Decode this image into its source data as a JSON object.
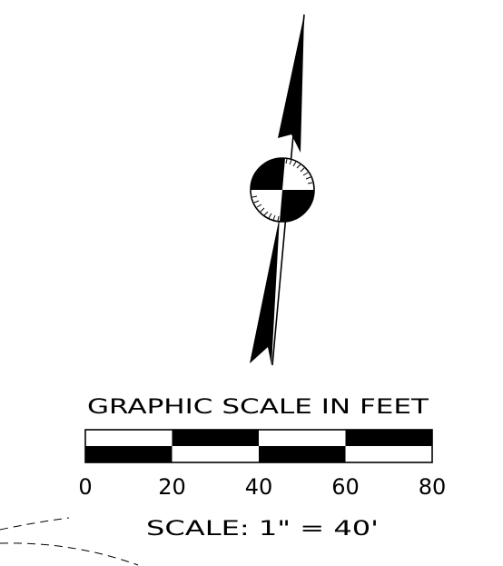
{
  "drawing": {
    "title": "GRAPHIC SCALE IN FEET",
    "scale_note": "SCALE: 1\" = 40'",
    "tick_labels": [
      "0",
      "20",
      "40",
      "60",
      "80"
    ],
    "scale_bar": {
      "units": "feet",
      "segments": [
        {
          "from": 0,
          "to": 20
        },
        {
          "from": 20,
          "to": 40
        },
        {
          "from": 40,
          "to": 60
        },
        {
          "from": 60,
          "to": 80
        }
      ]
    },
    "colors": {
      "ink": "#000000",
      "paper": "#ffffff"
    },
    "north_arrow": {
      "icon": "north-arrow-icon"
    }
  }
}
